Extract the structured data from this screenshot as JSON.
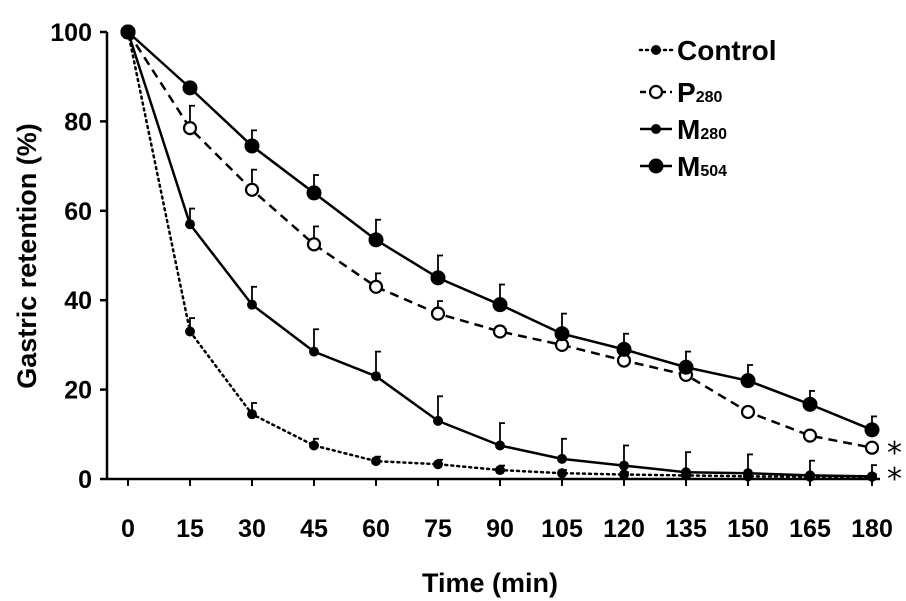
{
  "chart_data": {
    "type": "line",
    "xlabel": "Time (min)",
    "ylabel": "Gastric retention (%)",
    "x": [
      0,
      15,
      30,
      45,
      60,
      75,
      90,
      105,
      120,
      135,
      150,
      165,
      180
    ],
    "x_ticks": [
      "0",
      "15",
      "30",
      "45",
      "60",
      "75",
      "90",
      "105",
      "120",
      "135",
      "150",
      "165",
      "180"
    ],
    "y_ticks": [
      "0",
      "20",
      "40",
      "60",
      "80",
      "100"
    ],
    "xlim": [
      0,
      180
    ],
    "ylim": [
      0,
      100
    ],
    "grid": false,
    "legend_position": "top-right",
    "series": [
      {
        "name": "Control",
        "legend_main": "Control",
        "legend_sub": "",
        "line_style": "dotted",
        "marker": "small-filled-circle",
        "values": [
          100,
          33,
          14.5,
          7.5,
          4,
          3.3,
          2,
          1.3,
          1,
          0.8,
          0.6,
          0.5,
          0.5
        ],
        "errors": [
          0,
          3,
          2.5,
          1.5,
          1,
          1,
          1,
          0.7,
          0.5,
          0.5,
          0.5,
          0.5,
          0.5
        ]
      },
      {
        "name": "P280",
        "legend_main": "P",
        "legend_sub": "280",
        "line_style": "dashed",
        "marker": "open-circle",
        "values": [
          100,
          78.5,
          64.7,
          52.5,
          43,
          37,
          33,
          30,
          26.5,
          23.3,
          15,
          9.7,
          7
        ],
        "errors": [
          0,
          5,
          4.5,
          4,
          3,
          2.8,
          0,
          0,
          0,
          0,
          0,
          0,
          0
        ]
      },
      {
        "name": "M280",
        "legend_main": "M",
        "legend_sub": "280",
        "line_style": "solid",
        "marker": "small-filled-circle",
        "values": [
          100,
          57,
          39,
          28.5,
          23,
          13,
          7.5,
          4.5,
          3,
          1.5,
          1.3,
          0.8,
          0.6
        ],
        "errors": [
          0,
          3.5,
          4,
          5,
          5.5,
          5.5,
          5,
          4.5,
          4.5,
          4.5,
          4.2,
          3.3,
          2.5
        ]
      },
      {
        "name": "M504",
        "legend_main": "M",
        "legend_sub": "504",
        "line_style": "solid",
        "marker": "large-filled-circle",
        "values": [
          100,
          87.5,
          74.5,
          64,
          53.5,
          45,
          39,
          32.5,
          29,
          25,
          22,
          16.7,
          11
        ],
        "errors": [
          0,
          0,
          3.5,
          4,
          4.5,
          5,
          4.5,
          4.5,
          3.5,
          3.5,
          3.5,
          3,
          3
        ]
      }
    ],
    "annotations": [
      "*",
      "*"
    ]
  }
}
